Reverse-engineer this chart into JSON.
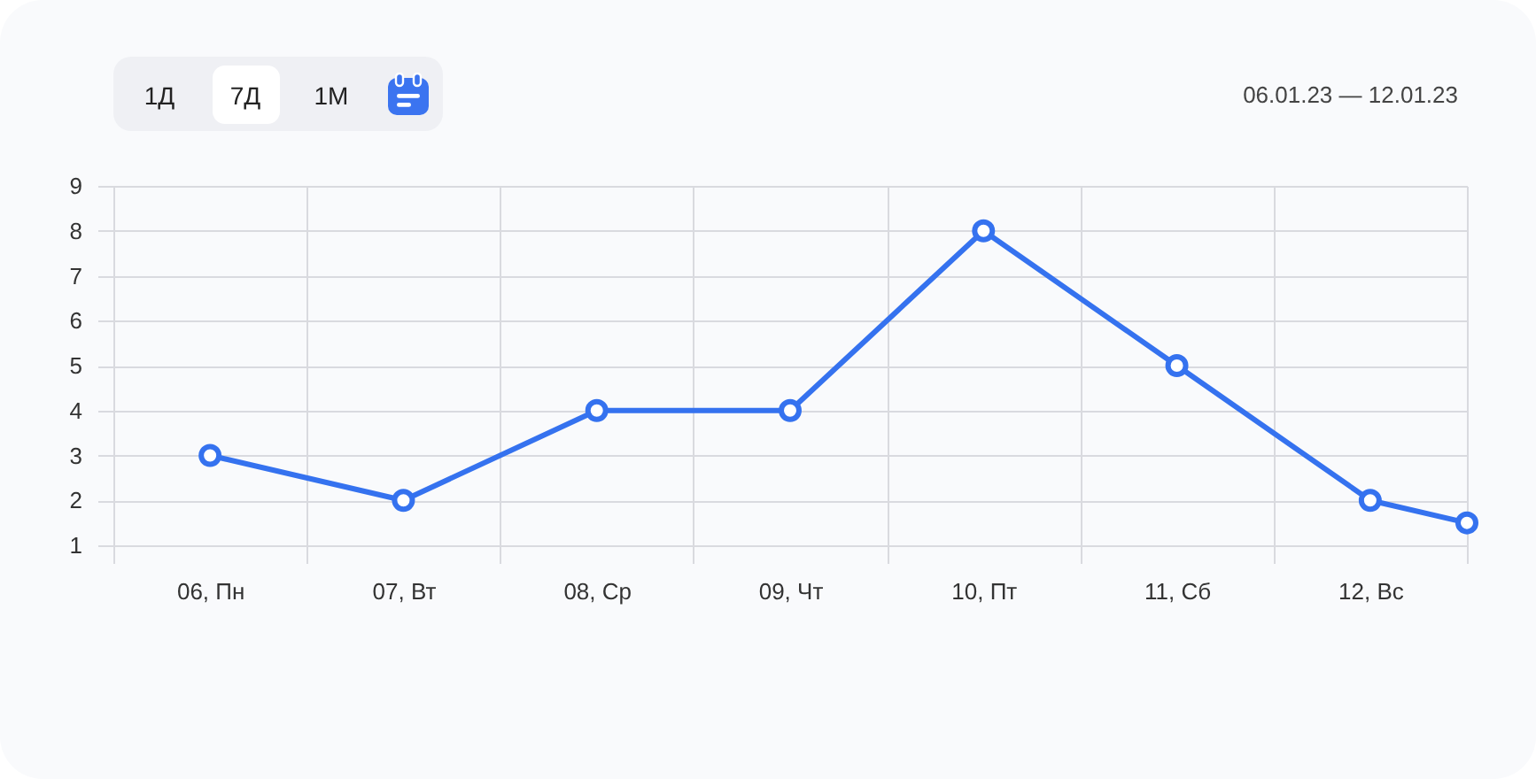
{
  "chart_data": {
    "type": "line",
    "x": [
      6.5,
      7.5,
      8.5,
      9.5,
      10.5,
      11.5,
      12.5,
      13
    ],
    "xlim": [
      6,
      13
    ],
    "xticks": [
      {
        "value": 6,
        "label": null
      },
      {
        "value": 6.5,
        "label": "06, Пн"
      },
      {
        "value": 7,
        "label": null
      },
      {
        "value": 7.5,
        "label": "07, Вт"
      },
      {
        "value": 8,
        "label": null
      },
      {
        "value": 8.5,
        "label": "08, Ср"
      },
      {
        "value": 9,
        "label": null
      },
      {
        "value": 9.5,
        "label": "09, Чт"
      },
      {
        "value": 10,
        "label": null
      },
      {
        "value": 10.5,
        "label": "10, Пт"
      },
      {
        "value": 11,
        "label": null
      },
      {
        "value": 11.5,
        "label": "11, Сб"
      },
      {
        "value": 12,
        "label": null
      },
      {
        "value": 12.5,
        "label": "12, Вс"
      },
      {
        "value": 13,
        "label": null
      }
    ],
    "ylim": [
      1,
      9
    ],
    "yticks": [
      1,
      2,
      3,
      4,
      5,
      6,
      7,
      8,
      9
    ],
    "series": [
      {
        "color": "#3572ef",
        "values": [
          3,
          2,
          4,
          4,
          8,
          5,
          2,
          1.5
        ]
      }
    ],
    "marker": "circle",
    "line_style": "solid",
    "grid": true,
    "legend": false,
    "annotations": [
      "1Д",
      "7Д",
      "1М",
      "06.01.23 — 12.01.23"
    ]
  }
}
